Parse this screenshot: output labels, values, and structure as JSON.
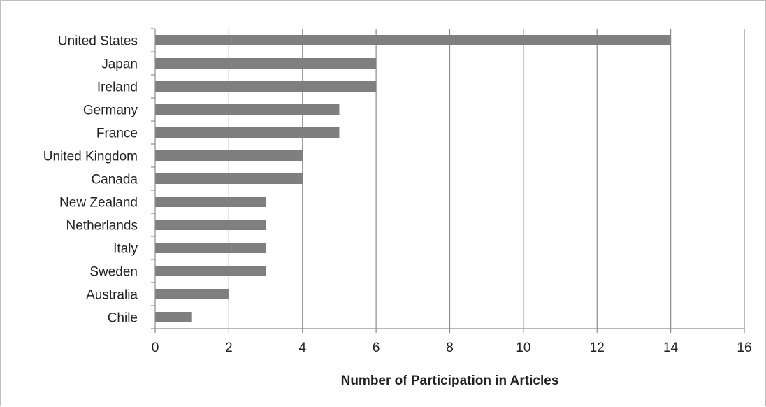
{
  "chart_data": {
    "type": "bar",
    "orientation": "horizontal",
    "categories": [
      "United States",
      "Japan",
      "Ireland",
      "Germany",
      "France",
      "United Kingdom",
      "Canada",
      "New Zealand",
      "Netherlands",
      "Italy",
      "Sweden",
      "Australia",
      "Chile"
    ],
    "values": [
      14,
      6,
      6,
      5,
      5,
      4,
      4,
      3,
      3,
      3,
      3,
      2,
      1
    ],
    "xlabel": "Number of Participation in Articles",
    "ylabel": "",
    "title": "",
    "xlim": [
      0,
      16
    ],
    "xticks": [
      0,
      2,
      4,
      6,
      8,
      10,
      12,
      14,
      16
    ],
    "grid": "vertical",
    "legend": "none",
    "colors": {
      "bar": "#7f7f7f",
      "grid": "#8c8c8c",
      "axis": "#8c8c8c",
      "frame": "#bfbfbf"
    }
  }
}
